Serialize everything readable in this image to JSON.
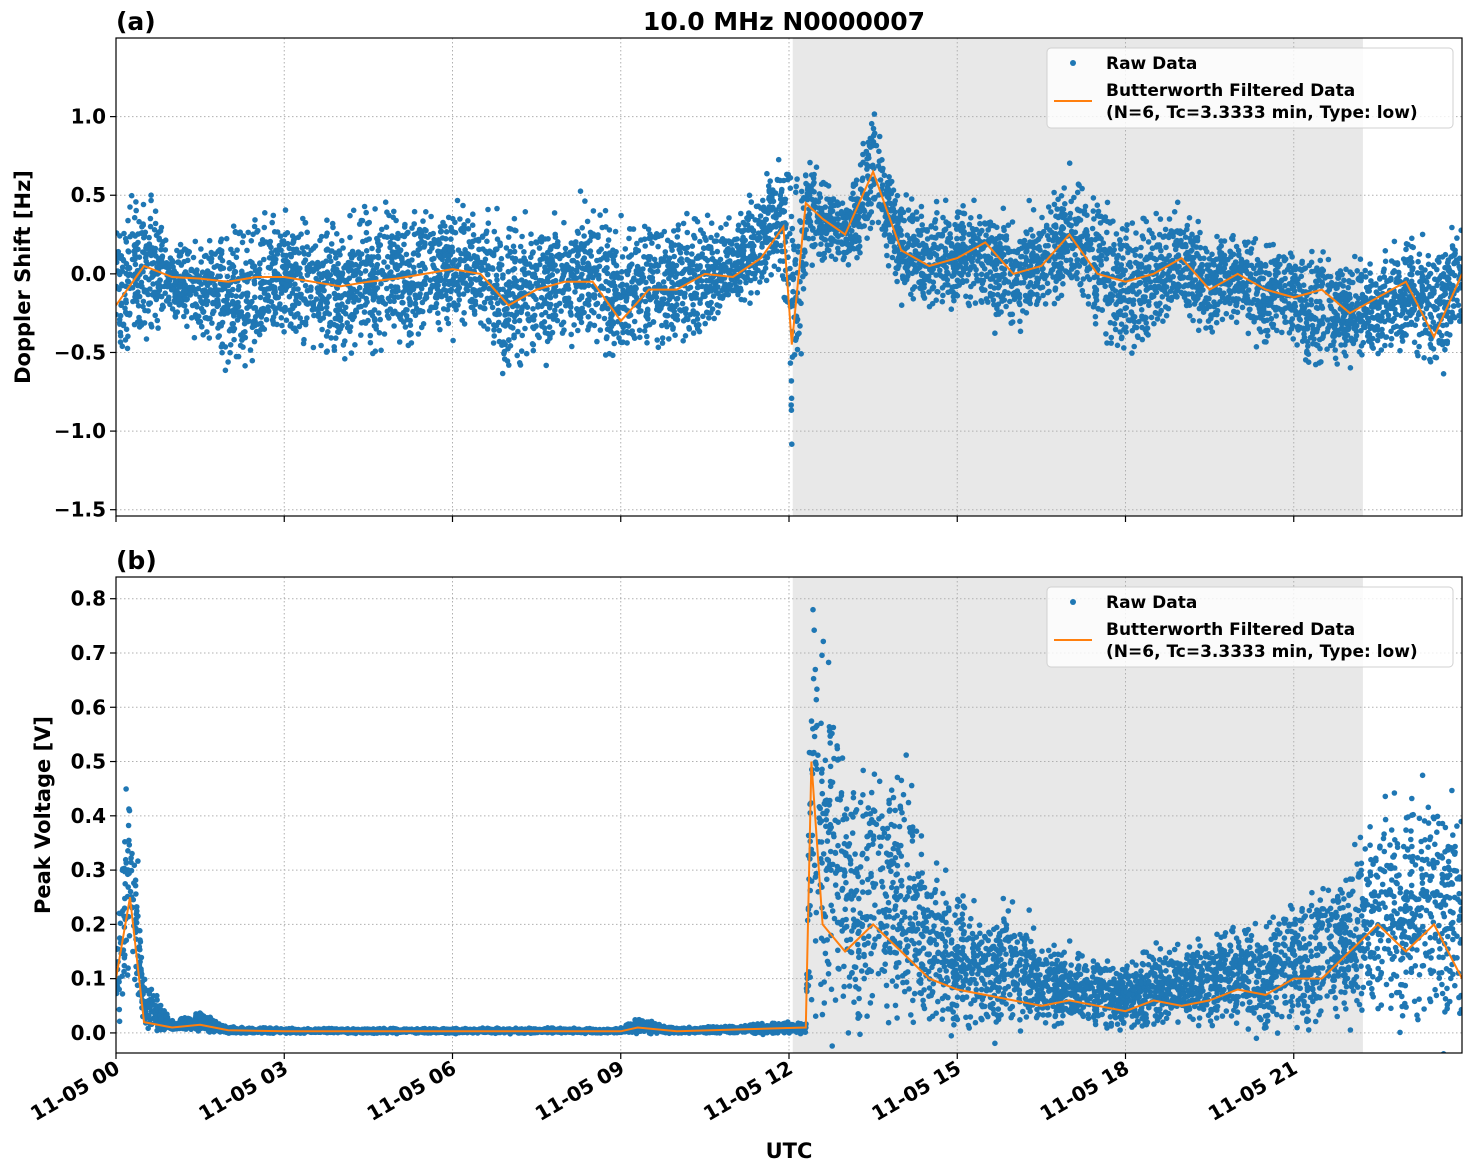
{
  "figure": {
    "title": "10.0 MHz N0000007",
    "xlabel": "UTC",
    "colors": {
      "raw": "#1f77b4",
      "filtered": "#ff7f0e",
      "shade": "#e8e8e8",
      "grid": "#b0b0b0"
    }
  },
  "chart_data": [
    {
      "type": "scatter",
      "panel_label": "(a)",
      "ylabel": "Doppler Shift [Hz]",
      "xlim": [
        "11-05 00:00",
        "11-06 00:00"
      ],
      "ylim": [
        -1.54,
        1.5
      ],
      "xticks": [
        "11-05 00",
        "11-05 03",
        "11-05 06",
        "11-05 09",
        "11-05 12",
        "11-05 15",
        "11-05 18",
        "11-05 21"
      ],
      "yticks": [
        1.0,
        0.5,
        0.0,
        -0.5,
        -1.0,
        -1.5
      ],
      "ytick_labels": [
        "1.0",
        "0.5",
        "0.0",
        "−0.5",
        "−1.0",
        "−1.5"
      ],
      "grid": true,
      "shaded_region": [
        "11-05 12:04",
        "11-05 22:14"
      ],
      "legend": {
        "placement": "upper right",
        "entries": [
          "Raw Data",
          "Butterworth Filtered Data",
          "(N=6, Tc=3.3333 min, Type: low)"
        ]
      },
      "series": [
        {
          "name": "Raw Data",
          "kind": "scatter-envelope",
          "x": [
            "11-05 00:00",
            "11-05 00:30",
            "11-05 01:00",
            "11-05 01:30",
            "11-05 02:00",
            "11-05 02:30",
            "11-05 03:00",
            "11-05 03:30",
            "11-05 04:00",
            "11-05 04:30",
            "11-05 05:00",
            "11-05 05:30",
            "11-05 06:00",
            "11-05 06:30",
            "11-05 07:00",
            "11-05 07:30",
            "11-05 08:00",
            "11-05 08:30",
            "11-05 09:00",
            "11-05 09:30",
            "11-05 10:00",
            "11-05 10:30",
            "11-05 11:00",
            "11-05 11:30",
            "11-05 11:54",
            "11-05 12:03",
            "11-05 12:18",
            "11-05 12:36",
            "11-05 13:00",
            "11-05 13:30",
            "11-05 14:00",
            "11-05 14:30",
            "11-05 15:00",
            "11-05 15:30",
            "11-05 16:00",
            "11-05 16:30",
            "11-05 17:00",
            "11-05 17:30",
            "11-05 18:00",
            "11-05 18:30",
            "11-05 19:00",
            "11-05 19:30",
            "11-05 20:00",
            "11-05 20:30",
            "11-05 21:00",
            "11-05 21:30",
            "11-05 22:00",
            "11-05 22:30",
            "11-05 23:00",
            "11-05 23:30",
            "11-06 00:00"
          ],
          "y_low": [
            -0.5,
            -0.3,
            -0.3,
            -0.4,
            -0.6,
            -0.5,
            -0.3,
            -0.45,
            -0.5,
            -0.45,
            -0.4,
            -0.35,
            -0.3,
            -0.3,
            -0.6,
            -0.45,
            -0.4,
            -0.4,
            -0.55,
            -0.4,
            -0.45,
            -0.3,
            -0.25,
            -0.1,
            0.0,
            -1.2,
            0.1,
            0.1,
            0.05,
            0.3,
            -0.1,
            -0.2,
            -0.15,
            -0.2,
            -0.35,
            -0.2,
            -0.1,
            -0.3,
            -0.55,
            -0.3,
            -0.3,
            -0.35,
            -0.3,
            -0.4,
            -0.4,
            -0.6,
            -0.5,
            -0.5,
            -0.4,
            -0.6,
            -0.3
          ],
          "y_high": [
            0.2,
            0.5,
            0.15,
            0.15,
            0.25,
            0.3,
            0.3,
            0.3,
            0.3,
            0.35,
            0.4,
            0.35,
            0.4,
            0.35,
            0.3,
            0.3,
            0.35,
            0.4,
            0.25,
            0.25,
            0.3,
            0.3,
            0.3,
            0.6,
            0.8,
            0.6,
            0.8,
            0.6,
            0.45,
            1.0,
            0.45,
            0.4,
            0.4,
            0.4,
            0.35,
            0.35,
            0.6,
            0.4,
            0.3,
            0.3,
            0.4,
            0.25,
            0.25,
            0.2,
            0.15,
            0.1,
            0.05,
            0.05,
            0.2,
            0.15,
            0.3
          ]
        },
        {
          "name": "Butterworth Filtered Data",
          "kind": "line",
          "x": [
            "11-05 00:00",
            "11-05 00:30",
            "11-05 01:00",
            "11-05 01:30",
            "11-05 02:00",
            "11-05 02:30",
            "11-05 03:00",
            "11-05 03:30",
            "11-05 04:00",
            "11-05 04:30",
            "11-05 05:00",
            "11-05 05:30",
            "11-05 06:00",
            "11-05 06:30",
            "11-05 07:00",
            "11-05 07:30",
            "11-05 08:00",
            "11-05 08:30",
            "11-05 09:00",
            "11-05 09:30",
            "11-05 10:00",
            "11-05 10:30",
            "11-05 11:00",
            "11-05 11:30",
            "11-05 11:54",
            "11-05 12:03",
            "11-05 12:18",
            "11-05 12:36",
            "11-05 13:00",
            "11-05 13:30",
            "11-05 14:00",
            "11-05 14:30",
            "11-05 15:00",
            "11-05 15:30",
            "11-05 16:00",
            "11-05 16:30",
            "11-05 17:00",
            "11-05 17:30",
            "11-05 18:00",
            "11-05 18:30",
            "11-05 19:00",
            "11-05 19:30",
            "11-05 20:00",
            "11-05 20:30",
            "11-05 21:00",
            "11-05 21:30",
            "11-05 22:00",
            "11-05 22:30",
            "11-05 23:00",
            "11-05 23:30",
            "11-06 00:00"
          ],
          "y": [
            -0.2,
            0.05,
            -0.02,
            -0.03,
            -0.05,
            -0.02,
            -0.02,
            -0.05,
            -0.08,
            -0.05,
            -0.03,
            0.0,
            0.03,
            0.0,
            -0.2,
            -0.1,
            -0.05,
            -0.05,
            -0.3,
            -0.1,
            -0.1,
            0.0,
            -0.02,
            0.1,
            0.3,
            -0.45,
            0.45,
            0.35,
            0.25,
            0.65,
            0.15,
            0.05,
            0.1,
            0.2,
            0.0,
            0.05,
            0.25,
            0.0,
            -0.05,
            0.0,
            0.1,
            -0.1,
            0.0,
            -0.1,
            -0.15,
            -0.1,
            -0.25,
            -0.15,
            -0.05,
            -0.4,
            0.0
          ]
        }
      ]
    },
    {
      "type": "scatter",
      "panel_label": "(b)",
      "ylabel": "Peak Voltage [V]",
      "xlim": [
        "11-05 00:00",
        "11-06 00:00"
      ],
      "ylim": [
        -0.037,
        0.84
      ],
      "xticks": [
        "11-05 00",
        "11-05 03",
        "11-05 06",
        "11-05 09",
        "11-05 12",
        "11-05 15",
        "11-05 18",
        "11-05 21"
      ],
      "yticks": [
        0.0,
        0.1,
        0.2,
        0.3,
        0.4,
        0.5,
        0.6,
        0.7,
        0.8
      ],
      "ytick_labels": [
        "0.0",
        "0.1",
        "0.2",
        "0.3",
        "0.4",
        "0.5",
        "0.6",
        "0.7",
        "0.8"
      ],
      "grid": true,
      "shaded_region": [
        "11-05 12:04",
        "11-05 22:14"
      ],
      "legend": {
        "placement": "upper right",
        "entries": [
          "Raw Data",
          "Butterworth Filtered Data",
          "(N=6, Tc=3.3333 min, Type: low)"
        ]
      },
      "series": [
        {
          "name": "Raw Data",
          "kind": "scatter-envelope",
          "x": [
            "11-05 00:00",
            "11-05 00:15",
            "11-05 00:30",
            "11-05 01:00",
            "11-05 01:30",
            "11-05 02:00",
            "11-05 03:00",
            "11-05 06:00",
            "11-05 09:00",
            "11-05 09:18",
            "11-05 10:00",
            "11-05 12:18",
            "11-05 12:24",
            "11-05 12:36",
            "11-05 13:00",
            "11-05 13:30",
            "11-05 14:00",
            "11-05 14:30",
            "11-05 15:00",
            "11-05 15:30",
            "11-05 16:00",
            "11-05 16:30",
            "11-05 17:00",
            "11-05 17:30",
            "11-05 18:00",
            "11-05 18:30",
            "11-05 19:00",
            "11-05 19:30",
            "11-05 20:00",
            "11-05 20:30",
            "11-05 21:00",
            "11-05 21:30",
            "11-05 22:00",
            "11-05 22:30",
            "11-05 23:00",
            "11-05 23:30",
            "11-06 00:00"
          ],
          "y_low": [
            0.02,
            0.1,
            0.01,
            0.005,
            0.005,
            0.0,
            0.0,
            0.0,
            0.0,
            0.0,
            0.0,
            0.0,
            0.1,
            0.05,
            0.02,
            0.05,
            0.03,
            0.03,
            0.02,
            0.02,
            0.02,
            0.02,
            0.02,
            0.02,
            0.01,
            0.02,
            0.02,
            0.02,
            0.02,
            0.02,
            0.02,
            0.03,
            0.05,
            0.05,
            0.04,
            0.05,
            0.02
          ],
          "y_high": [
            0.2,
            0.5,
            0.1,
            0.02,
            0.035,
            0.01,
            0.008,
            0.008,
            0.008,
            0.025,
            0.008,
            0.02,
            0.8,
            0.75,
            0.5,
            0.45,
            0.5,
            0.3,
            0.25,
            0.2,
            0.25,
            0.15,
            0.15,
            0.12,
            0.12,
            0.15,
            0.15,
            0.18,
            0.2,
            0.2,
            0.25,
            0.25,
            0.3,
            0.4,
            0.4,
            0.45,
            0.4
          ]
        },
        {
          "name": "Butterworth Filtered Data",
          "kind": "line",
          "x": [
            "11-05 00:00",
            "11-05 00:15",
            "11-05 00:30",
            "11-05 01:00",
            "11-05 01:30",
            "11-05 02:00",
            "11-05 03:00",
            "11-05 06:00",
            "11-05 09:00",
            "11-05 09:18",
            "11-05 10:00",
            "11-05 12:18",
            "11-05 12:24",
            "11-05 12:36",
            "11-05 13:00",
            "11-05 13:30",
            "11-05 14:00",
            "11-05 14:30",
            "11-05 15:00",
            "11-05 15:30",
            "11-05 16:00",
            "11-05 16:30",
            "11-05 17:00",
            "11-05 17:30",
            "11-05 18:00",
            "11-05 18:30",
            "11-05 19:00",
            "11-05 19:30",
            "11-05 20:00",
            "11-05 20:30",
            "11-05 21:00",
            "11-05 21:30",
            "11-05 22:00",
            "11-05 22:30",
            "11-05 23:00",
            "11-05 23:30",
            "11-06 00:00"
          ],
          "y": [
            0.1,
            0.25,
            0.02,
            0.01,
            0.015,
            0.005,
            0.003,
            0.003,
            0.003,
            0.01,
            0.003,
            0.01,
            0.5,
            0.2,
            0.15,
            0.2,
            0.15,
            0.1,
            0.08,
            0.07,
            0.06,
            0.05,
            0.06,
            0.05,
            0.04,
            0.06,
            0.05,
            0.06,
            0.08,
            0.07,
            0.1,
            0.1,
            0.15,
            0.2,
            0.15,
            0.2,
            0.1
          ]
        }
      ]
    }
  ]
}
